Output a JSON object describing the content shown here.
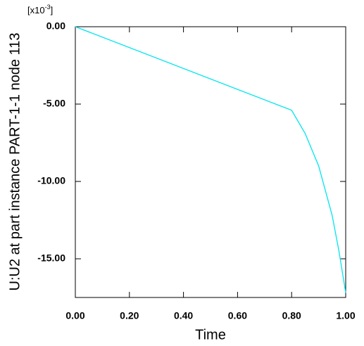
{
  "chart_data": {
    "type": "line",
    "ylabel": "U:U2 at part instance PART-1-1 node 113",
    "xlabel": "Time",
    "y_scale_label": {
      "base": "[x10",
      "exponent": "-3",
      "close": "]"
    },
    "x": [
      0,
      0.8,
      0.85,
      0.9,
      0.95,
      0.975,
      1.0
    ],
    "series": [
      {
        "color": "#00e5f0",
        "values": [
          0,
          -5.4,
          -6.9,
          -9.0,
          -12.2,
          -14.5,
          -17.2
        ]
      }
    ],
    "xlim": [
      0,
      1
    ],
    "ylim": [
      -17.5,
      0
    ],
    "xticks": [
      {
        "value": 0,
        "label": "0.00"
      },
      {
        "value": 0.2,
        "label": "0.20"
      },
      {
        "value": 0.4,
        "label": "0.40"
      },
      {
        "value": 0.6,
        "label": "0.60"
      },
      {
        "value": 0.8,
        "label": "0.80"
      },
      {
        "value": 1.0,
        "label": "1.00"
      }
    ],
    "yticks": [
      {
        "value": 0,
        "label": "0.00"
      },
      {
        "value": -5,
        "label": "-5.00"
      },
      {
        "value": -10,
        "label": "-10.00"
      },
      {
        "value": -15,
        "label": "-15.00"
      }
    ]
  }
}
